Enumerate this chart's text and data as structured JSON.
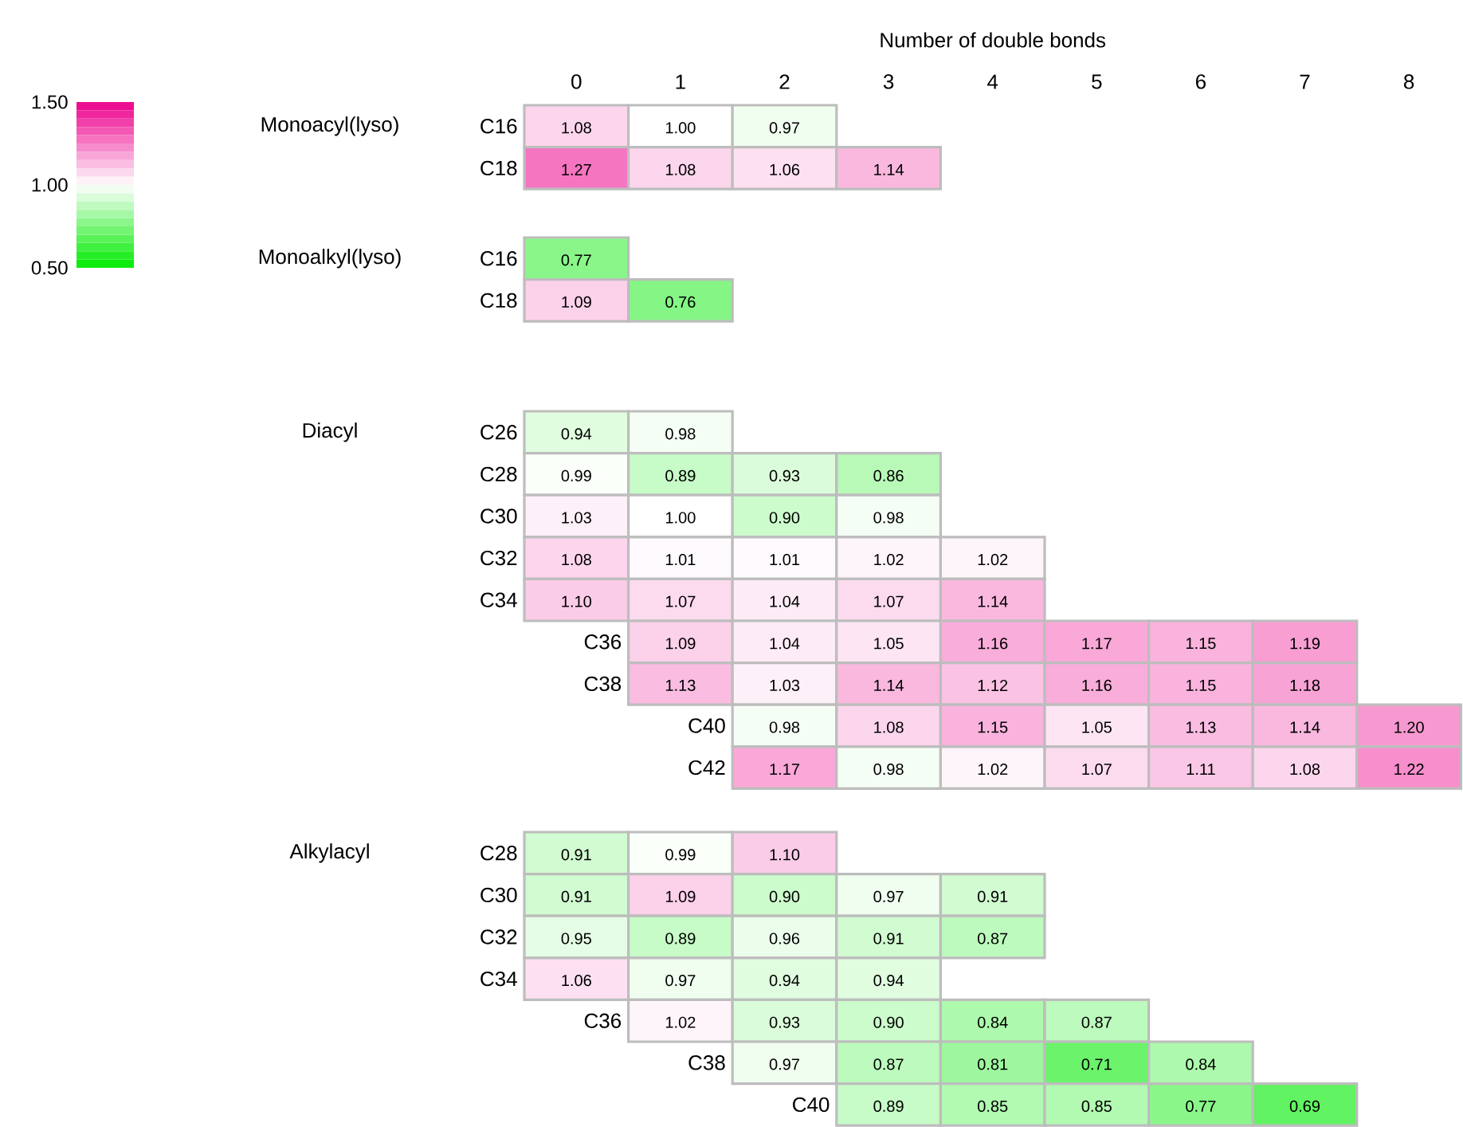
{
  "chart_data": [
    {
      "type": "heatmap",
      "xlabel": "Number of double bonds",
      "ylabel": "Monoacyl(lyso)",
      "categories": [
        "0",
        "1",
        "2",
        "3",
        "4",
        "5",
        "6",
        "7",
        "8"
      ],
      "y_categories": [
        "C16",
        "C18"
      ],
      "cells": [
        [
          1.08,
          1.0,
          0.97,
          null,
          null,
          null,
          null,
          null,
          null
        ],
        [
          1.27,
          1.08,
          1.06,
          1.14,
          null,
          null,
          null,
          null,
          null
        ]
      ],
      "cell_labels": [
        [
          "1.08",
          "1.00",
          "0.97",
          null,
          null,
          null,
          null,
          null,
          null
        ],
        [
          "1.27",
          "1.08",
          "1.06",
          "1.14",
          null,
          null,
          null,
          null,
          null
        ]
      ],
      "clim": [
        0.5,
        1.5
      ],
      "cticks": [
        {
          "value": 0.5,
          "label": "0.50"
        },
        {
          "value": 1.0,
          "label": "1.00"
        },
        {
          "value": 1.5,
          "label": "1.50"
        }
      ]
    },
    {
      "type": "heatmap",
      "ylabel": "Monoalkyl(lyso)",
      "tick_labels": "y",
      "categories": [
        "0",
        "1",
        "2",
        "3",
        "4",
        "5",
        "6",
        "7",
        "8"
      ],
      "y_categories": [
        "C16",
        "C18"
      ],
      "cells": [
        [
          0.77,
          null,
          null,
          null,
          null,
          null,
          null,
          null,
          null
        ],
        [
          1.09,
          0.76,
          null,
          null,
          null,
          null,
          null,
          null,
          null
        ]
      ],
      "cell_labels": [
        [
          "0.77",
          null,
          null,
          null,
          null,
          null,
          null,
          null,
          null
        ],
        [
          "1.09",
          "0.76",
          null,
          null,
          null,
          null,
          null,
          null,
          null
        ]
      ]
    },
    {
      "type": "heatmap",
      "ylabel": "Diacyl",
      "tick_labels": "y",
      "categories": [
        "0",
        "1",
        "2",
        "3",
        "4",
        "5",
        "6",
        "7",
        "8"
      ],
      "y_categories": [
        "C26",
        "C28",
        "C30",
        "C32",
        "C34",
        "C36",
        "C38",
        "C40",
        "C42"
      ],
      "cells": [
        [
          0.94,
          0.98,
          null,
          null,
          null,
          null,
          null,
          null,
          null
        ],
        [
          0.99,
          0.89,
          0.93,
          0.86,
          null,
          null,
          null,
          null,
          null
        ],
        [
          1.03,
          1.0,
          0.9,
          0.98,
          null,
          null,
          null,
          null,
          null
        ],
        [
          1.08,
          1.01,
          1.01,
          1.02,
          1.02,
          null,
          null,
          null,
          null
        ],
        [
          1.1,
          1.07,
          1.04,
          1.07,
          1.14,
          null,
          null,
          null,
          null
        ],
        [
          null,
          1.09,
          1.04,
          1.05,
          1.16,
          1.17,
          1.15,
          1.19,
          null
        ],
        [
          null,
          1.13,
          1.03,
          1.14,
          1.12,
          1.16,
          1.15,
          1.18,
          null
        ],
        [
          null,
          null,
          0.98,
          1.08,
          1.15,
          1.05,
          1.13,
          1.14,
          1.2
        ],
        [
          null,
          null,
          1.17,
          0.98,
          1.02,
          1.07,
          1.11,
          1.08,
          1.22
        ]
      ],
      "cell_labels": [
        [
          "0.94",
          "0.98",
          null,
          null,
          null,
          null,
          null,
          null,
          null
        ],
        [
          "0.99",
          "0.89",
          "0.93",
          "0.86",
          null,
          null,
          null,
          null,
          null
        ],
        [
          "1.03",
          "1.00",
          "0.90",
          "0.98",
          null,
          null,
          null,
          null,
          null
        ],
        [
          "1.08",
          "1.01",
          "1.01",
          "1.02",
          "1.02",
          null,
          null,
          null,
          null
        ],
        [
          "1.10",
          "1.07",
          "1.04",
          "1.07",
          "1.14",
          null,
          null,
          null,
          null
        ],
        [
          null,
          "1.09",
          "1.04",
          "1.05",
          "1.16",
          "1.17",
          "1.15",
          "1.19",
          null
        ],
        [
          null,
          "1.13",
          "1.03",
          "1.14",
          "1.12",
          "1.16",
          "1.15",
          "1.18",
          null
        ],
        [
          null,
          null,
          "0.98",
          "1.08",
          "1.15",
          "1.05",
          "1.13",
          "1.14",
          "1.20"
        ],
        [
          null,
          null,
          "1.17",
          "0.98",
          "1.02",
          "1.07",
          "1.11",
          "1.08",
          "1.22"
        ]
      ]
    },
    {
      "type": "heatmap",
      "ylabel": "Alkylacyl",
      "tick_labels": "y",
      "categories": [
        "0",
        "1",
        "2",
        "3",
        "4",
        "5",
        "6",
        "7",
        "8"
      ],
      "y_categories": [
        "C28",
        "C30",
        "C32",
        "C34",
        "C36",
        "C38",
        "C40"
      ],
      "cells": [
        [
          0.91,
          0.99,
          1.1,
          null,
          null,
          null,
          null,
          null,
          null
        ],
        [
          0.91,
          1.09,
          0.9,
          0.97,
          0.91,
          null,
          null,
          null,
          null
        ],
        [
          0.95,
          0.89,
          0.96,
          0.91,
          0.87,
          null,
          null,
          null,
          null
        ],
        [
          1.06,
          0.97,
          0.94,
          0.94,
          null,
          null,
          null,
          null,
          null
        ],
        [
          null,
          1.02,
          0.93,
          0.9,
          0.84,
          0.87,
          null,
          null,
          null
        ],
        [
          null,
          null,
          0.97,
          0.87,
          0.81,
          0.71,
          0.84,
          null,
          null
        ],
        [
          null,
          null,
          null,
          0.89,
          0.85,
          0.85,
          0.77,
          0.69,
          null
        ]
      ],
      "cell_labels": [
        [
          "0.91",
          "0.99",
          "1.10",
          null,
          null,
          null,
          null,
          null,
          null
        ],
        [
          "0.91",
          "1.09",
          "0.90",
          "0.97",
          "0.91",
          null,
          null,
          null,
          null
        ],
        [
          "0.95",
          "0.89",
          "0.96",
          "0.91",
          "0.87",
          null,
          null,
          null,
          null
        ],
        [
          "1.06",
          "0.97",
          "0.94",
          "0.94",
          null,
          null,
          null,
          null,
          null
        ],
        [
          null,
          "1.02",
          "0.93",
          "0.90",
          "0.84",
          "0.87",
          null,
          null,
          null
        ],
        [
          null,
          null,
          "0.97",
          "0.87",
          "0.81",
          "0.71",
          "0.84",
          null,
          null
        ],
        [
          null,
          null,
          null,
          "0.89",
          "0.85",
          "0.85",
          "0.77",
          "0.69",
          null
        ]
      ]
    }
  ]
}
